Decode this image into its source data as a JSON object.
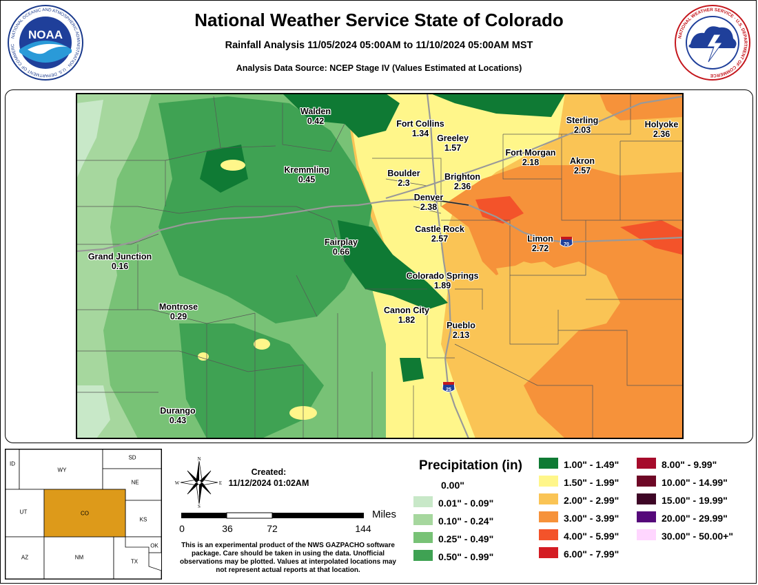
{
  "header": {
    "title": "National Weather Service State of Colorado",
    "subtitle": "Rainfall Analysis 11/05/2024 05:00AM to 11/10/2024 05:00AM MST",
    "source": "Analysis Data Source: NCEP Stage IV (Values Estimated at Locations)"
  },
  "logos": {
    "noaa_text": "NOAA",
    "noaa_ring": "NATIONAL OCEANIC AND ATMOSPHERIC ADMINISTRATION · U.S. DEPARTMENT OF COMMERCE",
    "nws_ring": "NATIONAL WEATHER SERVICE · U.S. DEPARTMENT OF COMMERCE"
  },
  "cities": [
    {
      "name": "Walden",
      "value": "0.42"
    },
    {
      "name": "Fort Collins",
      "value": "1.34"
    },
    {
      "name": "Greeley",
      "value": "1.57"
    },
    {
      "name": "Sterling",
      "value": "2.03"
    },
    {
      "name": "Holyoke",
      "value": "2.36"
    },
    {
      "name": "Kremmling",
      "value": "0.45"
    },
    {
      "name": "Fort Morgan",
      "value": "2.18"
    },
    {
      "name": "Akron",
      "value": "2.57"
    },
    {
      "name": "Boulder",
      "value": "2.3"
    },
    {
      "name": "Brighton",
      "value": "2.36"
    },
    {
      "name": "Denver",
      "value": "2.38"
    },
    {
      "name": "Castle Rock",
      "value": "2.57"
    },
    {
      "name": "Limon",
      "value": "2.72"
    },
    {
      "name": "Fairplay",
      "value": "0.66"
    },
    {
      "name": "Grand Junction",
      "value": "0.16"
    },
    {
      "name": "Colorado Springs",
      "value": "1.89"
    },
    {
      "name": "Montrose",
      "value": "0.29"
    },
    {
      "name": "Canon City",
      "value": "1.82"
    },
    {
      "name": "Pueblo",
      "value": "2.13"
    },
    {
      "name": "Durango",
      "value": "0.43"
    }
  ],
  "highways": {
    "i70": "70",
    "i25": "25"
  },
  "inset": {
    "states": [
      "ID",
      "WY",
      "SD",
      "NE",
      "UT",
      "CO",
      "KS",
      "AZ",
      "NM",
      "TX",
      "OK"
    ],
    "highlight_color": "#dd9a1a"
  },
  "compass": {
    "n": "N",
    "s": "S",
    "e": "E",
    "w": "W"
  },
  "created": {
    "label": "Created:",
    "value": "11/12/2024 01:02AM"
  },
  "scale": {
    "ticks": [
      "0",
      "36",
      "72",
      "144"
    ],
    "unit": "Miles"
  },
  "disclaimer": "This is an experimental product of the NWS GAZPACHO software package. Care should be taken in using the data. Unofficial observations may be plotted. Values at interpolated locations may not represent actual reports at that location.",
  "legend": {
    "title": "Precipitation (in)",
    "items": [
      {
        "label": "0.00\"",
        "color": "#ffffff"
      },
      {
        "label": "0.01\" - 0.09\"",
        "color": "#c8e8c8"
      },
      {
        "label": "0.10\" - 0.24\"",
        "color": "#a6d79e"
      },
      {
        "label": "0.25\" - 0.49\"",
        "color": "#78c276"
      },
      {
        "label": "0.50\" - 0.99\"",
        "color": "#3fa253"
      },
      {
        "label": "1.00\" - 1.49\"",
        "color": "#0f7a34"
      },
      {
        "label": "1.50\" - 1.99\"",
        "color": "#fff68a"
      },
      {
        "label": "2.00\" - 2.99\"",
        "color": "#fac455"
      },
      {
        "label": "3.00\" - 3.99\"",
        "color": "#f6923a"
      },
      {
        "label": "4.00\" - 5.99\"",
        "color": "#f3532a"
      },
      {
        "label": "6.00\" - 7.99\"",
        "color": "#d41c23"
      },
      {
        "label": "8.00\" - 9.99\"",
        "color": "#a60b2b"
      },
      {
        "label": "10.00\" - 14.99\"",
        "color": "#6e0826"
      },
      {
        "label": "15.00\" - 19.99\"",
        "color": "#3e0626"
      },
      {
        "label": "20.00\" - 29.99\"",
        "color": "#55097a"
      },
      {
        "label": "30.00\" - 50.00+\"",
        "color": "#ffd6ff"
      }
    ]
  }
}
